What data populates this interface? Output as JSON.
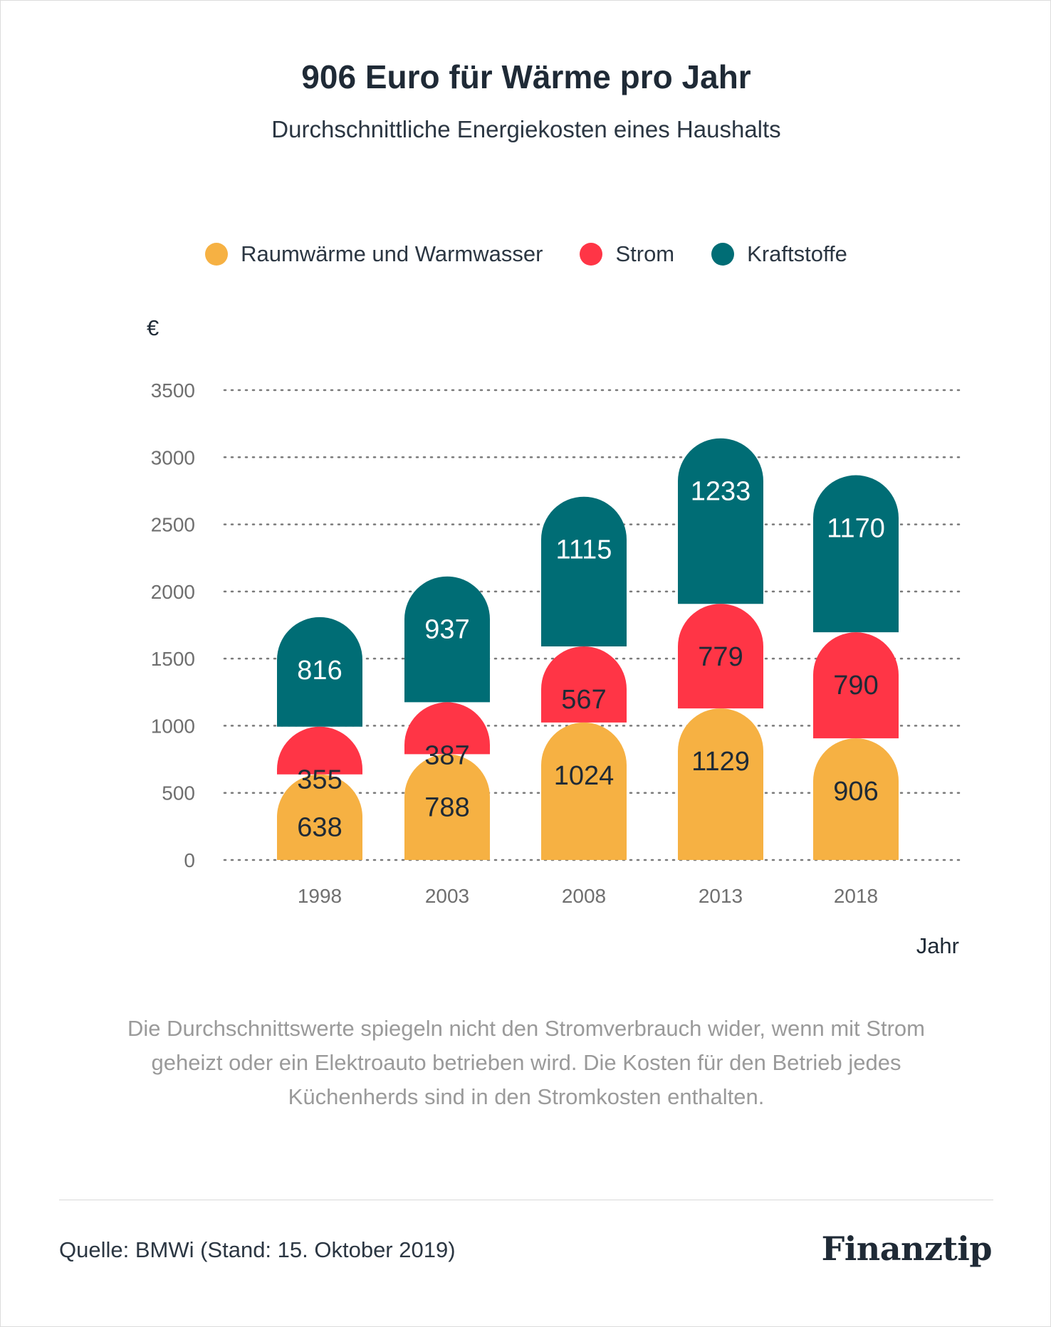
{
  "title": "906 Euro für Wärme pro Jahr",
  "subtitle": "Durchschnittliche Energiekosten eines Haushalts",
  "colors": {
    "heat": "#F6B143",
    "power": "#FF3546",
    "fuel": "#006D75",
    "grid": "#7a7a7a",
    "tick": "#6f6f6f"
  },
  "footnote": "Die Durchschnittswerte spiegeln nicht den Stromverbrauch wider, wenn mit Strom geheizt oder ein Elektroauto betrieben wird. Die Kosten für den Betrieb jedes Küchenherds sind in den Stromkosten enthalten.",
  "source": "Quelle: BMWi (Stand: 15. Oktober 2019)",
  "logo": "Finanztip",
  "chart_data": {
    "type": "bar",
    "stacked": true,
    "categories": [
      "1998",
      "2003",
      "2008",
      "2013",
      "2018"
    ],
    "series": [
      {
        "name": "Raumwärme und Warmwasser",
        "color": "#F6B143",
        "label_color": "#1f2a36",
        "values": [
          638,
          788,
          1024,
          1129,
          906
        ]
      },
      {
        "name": "Strom",
        "color": "#FF3546",
        "label_color": "#1f2a36",
        "values": [
          355,
          387,
          567,
          779,
          790
        ]
      },
      {
        "name": "Kraftstoffe",
        "color": "#006D75",
        "label_color": "#ffffff",
        "values": [
          816,
          937,
          1115,
          1233,
          1170
        ]
      }
    ],
    "ylabel": "€",
    "xlabel": "Jahr",
    "ylim": [
      0,
      3500
    ],
    "yticks": [
      0,
      500,
      1000,
      1500,
      2000,
      2500,
      3000,
      3500
    ],
    "grid": true,
    "legend_position": "top-center"
  }
}
